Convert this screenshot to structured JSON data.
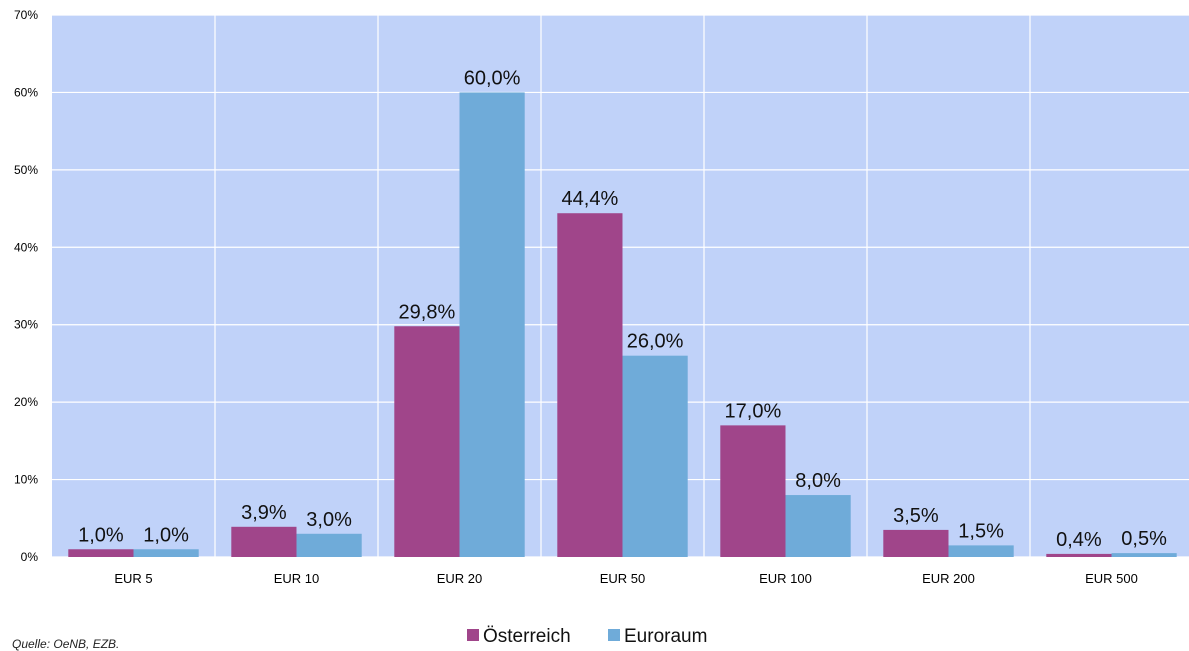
{
  "chart_data": {
    "type": "bar",
    "categories": [
      "EUR 5",
      "EUR 10",
      "EUR 20",
      "EUR 50",
      "EUR 100",
      "EUR 200",
      "EUR 500"
    ],
    "series": [
      {
        "name": "Österreich",
        "color": "#a0458a",
        "values": [
          1.0,
          3.9,
          29.8,
          44.4,
          17.0,
          3.5,
          0.4
        ],
        "labels": [
          "1,0%",
          "3,9%",
          "29,8%",
          "44,4%",
          "17,0%",
          "3,5%",
          "0,4%"
        ]
      },
      {
        "name": "Euroraum",
        "color": "#6fabd9",
        "values": [
          1.0,
          3.0,
          60.0,
          26.0,
          8.0,
          1.5,
          0.5
        ],
        "labels": [
          "1,0%",
          "3,0%",
          "60,0%",
          "26,0%",
          "8,0%",
          "1,5%",
          "0,5%"
        ]
      }
    ],
    "ylim": [
      0,
      70
    ],
    "yticks": [
      0,
      10,
      20,
      30,
      40,
      50,
      60,
      70
    ],
    "ytick_labels": [
      "0%",
      "10%",
      "20%",
      "30%",
      "40%",
      "50%",
      "60%",
      "70%"
    ],
    "grid": true,
    "plot_background": "#c0d2f9",
    "legend_position": "bottom"
  },
  "source": "Quelle: OeNB, EZB."
}
